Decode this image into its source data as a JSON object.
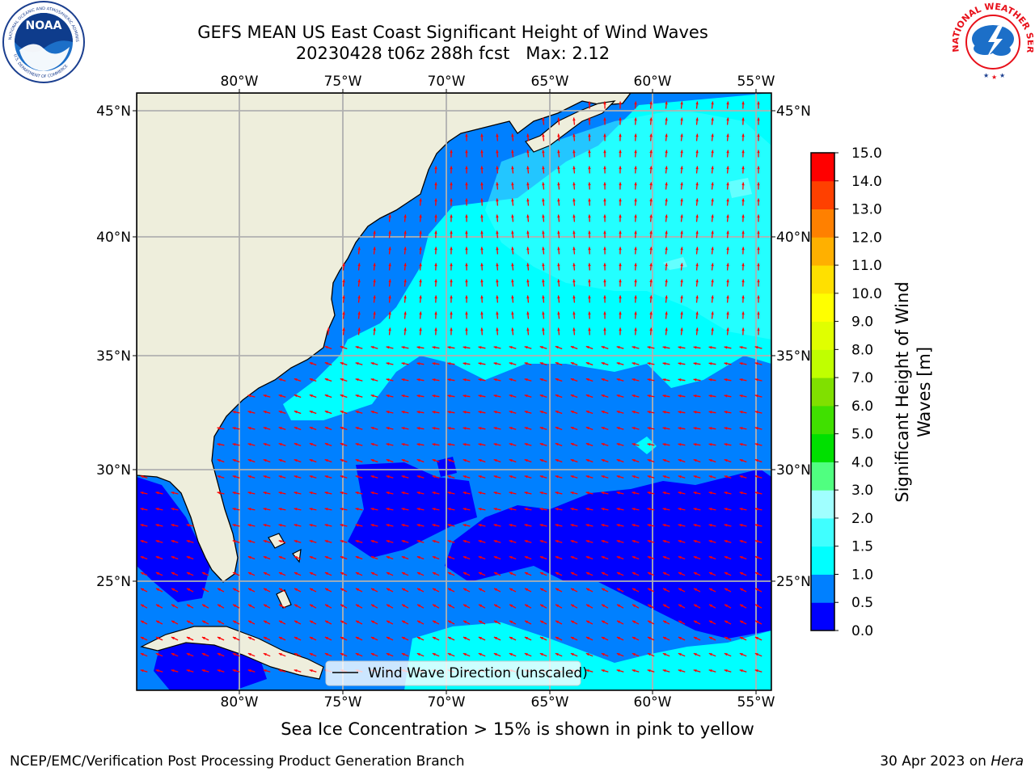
{
  "header": {
    "title_line1": "GEFS MEAN US East Coast Significant Height of Wind Waves",
    "title_line2": "20230428 t06z 288h fcst   Max: 2.12"
  },
  "logos": {
    "noaa_text": "NOAA",
    "noaa_ring_top": "NATIONAL OCEANIC AND ATMOSPHERIC ADMINISTRATION",
    "noaa_ring_bottom": "U.S. DEPARTMENT OF COMMERCE",
    "nws_ring": "NATIONAL WEATHER SERVICE"
  },
  "map": {
    "lon_labels": [
      "80°W",
      "75°W",
      "70°W",
      "65°W",
      "60°W",
      "55°W"
    ],
    "lat_labels": [
      "45°N",
      "40°N",
      "35°N",
      "30°N",
      "25°N"
    ],
    "legend_label": "Wind Wave Direction (unscaled)",
    "land_color": "#eeeedc",
    "arrow_color": "#ff0000"
  },
  "colorbar": {
    "title_line1": "Significant Height of Wind",
    "title_line2": "Waves [m]",
    "ticks": [
      "0.0",
      "0.5",
      "1.0",
      "1.5",
      "2.0",
      "3.0",
      "4.0",
      "5.0",
      "6.0",
      "7.0",
      "8.0",
      "9.0",
      "10.0",
      "11.0",
      "12.0",
      "13.0",
      "14.0",
      "15.0"
    ],
    "colors": [
      "#0000ff",
      "#0080ff",
      "#00ffff",
      "#40ffff",
      "#a0ffff",
      "#50ff80",
      "#00e000",
      "#40e000",
      "#80e000",
      "#c0ff00",
      "#e0ff00",
      "#ffff00",
      "#ffe000",
      "#ffb000",
      "#ff8000",
      "#ff4000",
      "#ff0000"
    ]
  },
  "note": "Sea Ice Concentration > 15% is shown in pink to yellow",
  "footer": {
    "left": "NCEP/EMC/Verification Post Processing Product Generation Branch",
    "date": "30 Apr 2023 on ",
    "machine": "Hera"
  }
}
